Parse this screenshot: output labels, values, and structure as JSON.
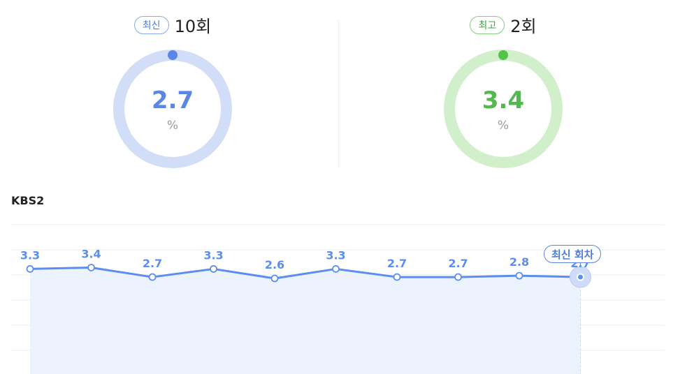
{
  "latest": {
    "badge": "최신",
    "episode": "10회",
    "value": "2.7",
    "unit": "%",
    "color": "#5b86e3",
    "track": "#d2def8"
  },
  "best": {
    "badge": "최고",
    "episode": "2회",
    "value": "3.4",
    "unit": "%",
    "color": "#55c24a",
    "track": "#d2efcc"
  },
  "chart": {
    "channel": "KBS2",
    "callout": "최신 회차"
  },
  "chart_data": {
    "type": "line",
    "title": "KBS2",
    "x": [
      1,
      2,
      3,
      4,
      5,
      6,
      7,
      8,
      9,
      10
    ],
    "series": [
      {
        "values": [
          3.3,
          3.4,
          2.7,
          3.3,
          2.6,
          3.3,
          2.7,
          2.7,
          2.8,
          2.7
        ]
      }
    ],
    "annotations": [
      {
        "x": 10,
        "text": "최신 회차"
      }
    ],
    "grid": true,
    "color": "#5b8ef0"
  }
}
